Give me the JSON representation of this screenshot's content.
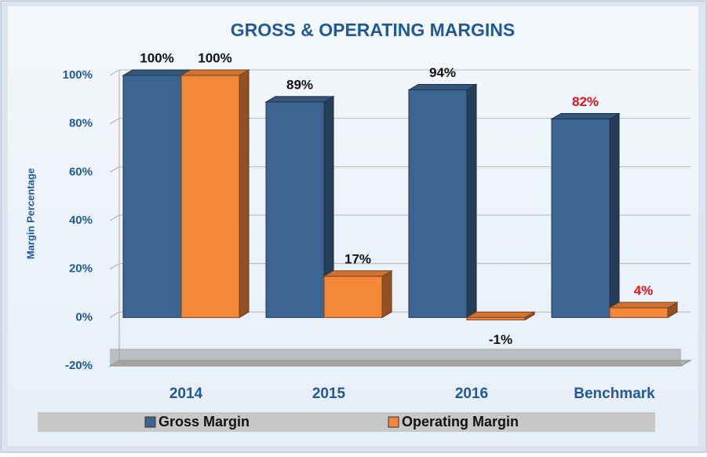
{
  "chart_data": {
    "type": "bar3d",
    "title": "GROSS & OPERATING MARGINS",
    "y_label": "Margin Percentage",
    "categories": [
      "2014",
      "2015",
      "2016",
      "Benchmark"
    ],
    "series": [
      {
        "name": "Gross Margin",
        "color": "#3d6591",
        "values": [
          100,
          89,
          94,
          82
        ],
        "value_labels": [
          "100%",
          "89%",
          "94%",
          "82%"
        ],
        "label_colors": [
          "#111111",
          "#111111",
          "#111111",
          "#e8101a"
        ]
      },
      {
        "name": "Operating Margin",
        "color": "#f4873a",
        "values": [
          100,
          17,
          -1,
          4
        ],
        "value_labels": [
          "100%",
          "17%",
          "-1%",
          "4%"
        ],
        "label_colors": [
          "#111111",
          "#111111",
          "#111111",
          "#e8101a"
        ]
      }
    ],
    "ylim": [
      -20,
      100
    ],
    "yticks": [
      {
        "value": -20,
        "label": "-20%"
      },
      {
        "value": 0,
        "label": "0%"
      },
      {
        "value": 20,
        "label": "20%"
      },
      {
        "value": 40,
        "label": "40%"
      },
      {
        "value": 60,
        "label": "60%"
      },
      {
        "value": 80,
        "label": "80%"
      },
      {
        "value": 100,
        "label": "100%"
      }
    ],
    "grid": true,
    "legend": "bottom"
  }
}
